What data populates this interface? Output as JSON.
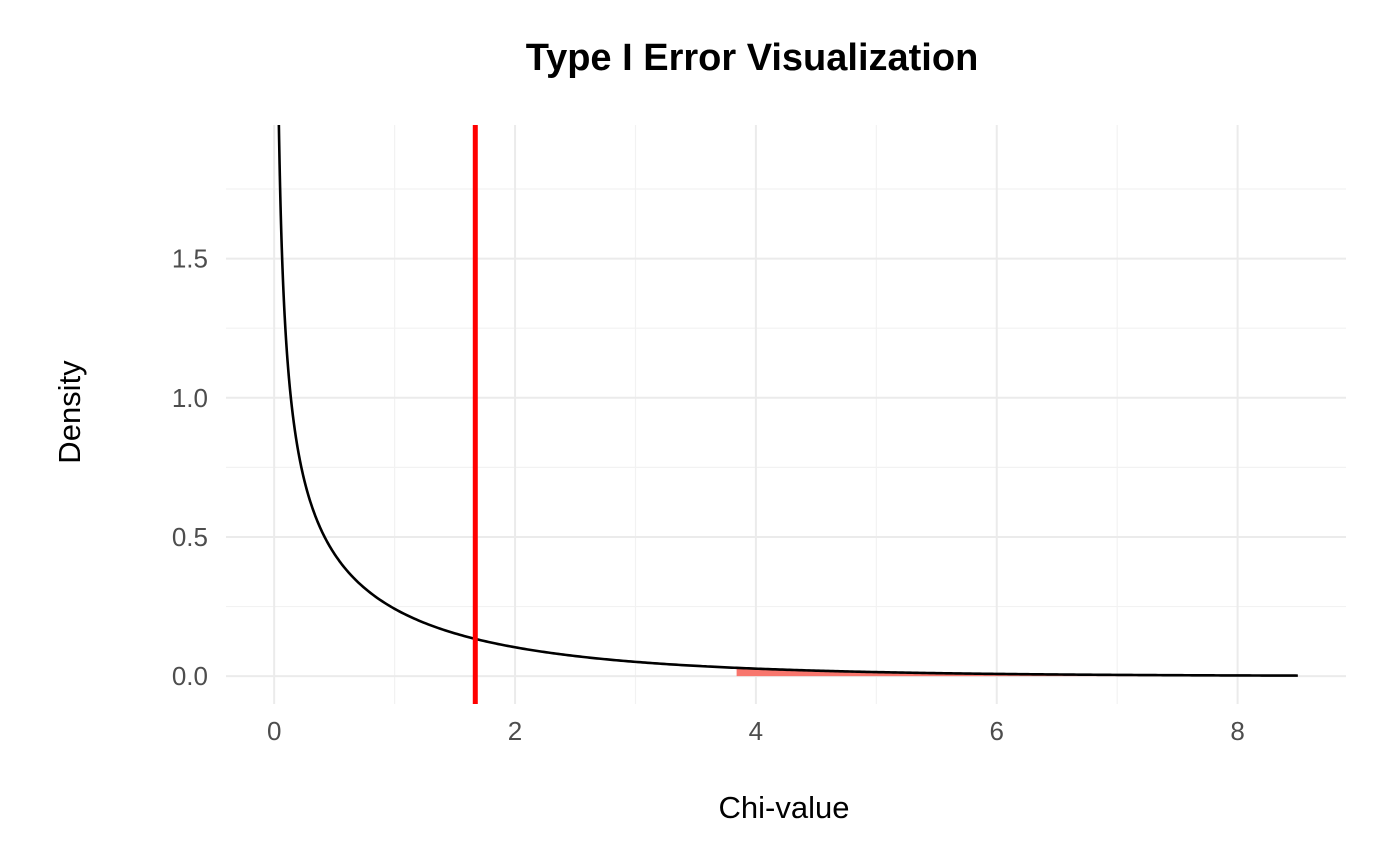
{
  "chart_data": {
    "type": "line",
    "title": "Type I Error Visualization",
    "xlabel": "Chi-value",
    "ylabel": "Density",
    "xlim": [
      -0.4,
      8.9
    ],
    "ylim": [
      -0.1,
      1.98
    ],
    "x_ticks": [
      0,
      2,
      4,
      6,
      8
    ],
    "y_ticks": [
      0.0,
      0.5,
      1.0,
      1.5
    ],
    "x_tick_labels": [
      "0",
      "2",
      "4",
      "6",
      "8"
    ],
    "y_tick_labels": [
      "0.0",
      "0.5",
      "1.0",
      "1.5"
    ],
    "grid": true,
    "distribution": "chi-square, df = 1",
    "curve_x_range": [
      0.01,
      8.5
    ],
    "observed_statistic": 1.67,
    "critical_value": 3.84,
    "rejection_region": [
      3.84,
      8.5
    ],
    "colors": {
      "curve": "#000000",
      "observed_line": "#ff0000",
      "rejection_fill": "#f8766d"
    },
    "series": [
      {
        "x": [
          0.01,
          0.05,
          0.1,
          0.15,
          0.2,
          0.3,
          0.4,
          0.5,
          0.75,
          1,
          1.5,
          2,
          2.5,
          3,
          3.5,
          4,
          5,
          6,
          7,
          8,
          8.5
        ],
        "y": [
          3.969,
          1.747,
          1.2,
          0.95,
          0.798,
          0.627,
          0.516,
          0.439,
          0.317,
          0.242,
          0.154,
          0.104,
          0.073,
          0.051,
          0.037,
          0.027,
          0.015,
          0.008,
          0.004,
          0.003,
          0.002
        ]
      }
    ]
  }
}
